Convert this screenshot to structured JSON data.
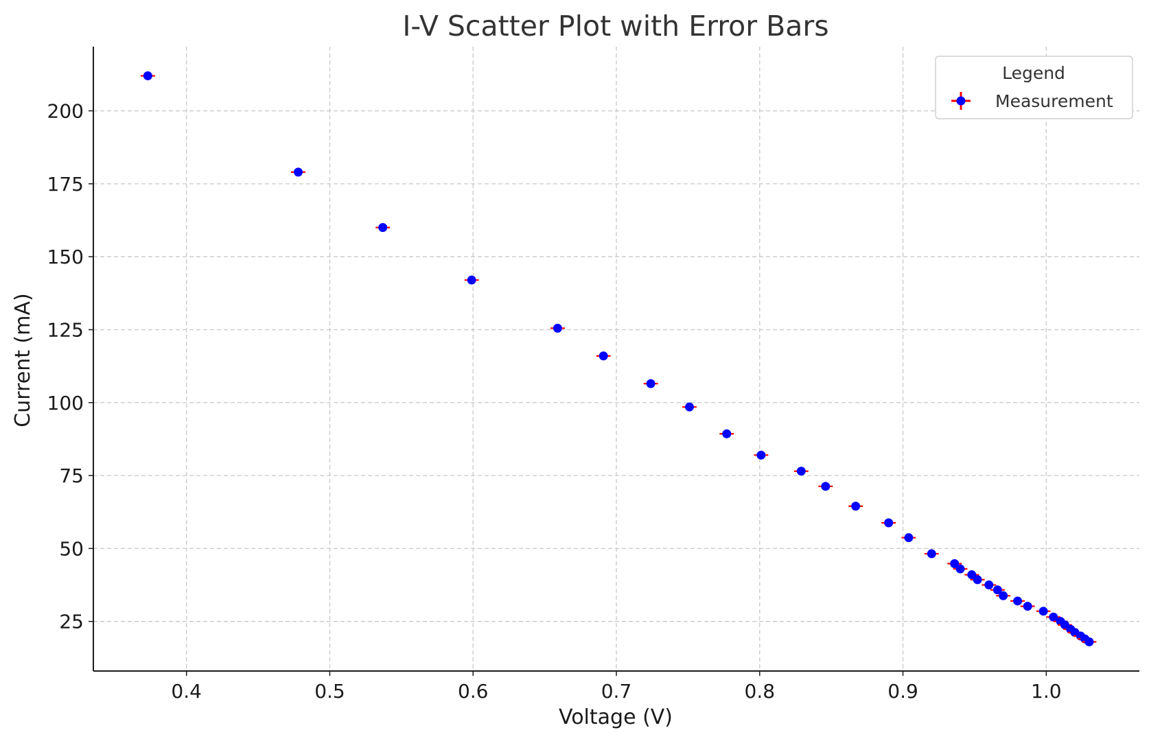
{
  "chart_data": {
    "type": "scatter",
    "title": "I-V Scatter Plot with Error Bars",
    "xlabel": "Voltage (V)",
    "ylabel": "Current (mA)",
    "xlim": [
      0.335,
      1.065
    ],
    "ylim": [
      8,
      222
    ],
    "xticks": [
      0.4,
      0.5,
      0.6,
      0.7,
      0.8,
      0.9,
      1.0
    ],
    "xtick_labels": [
      "0.4",
      "0.5",
      "0.6",
      "0.7",
      "0.8",
      "0.9",
      "1.0"
    ],
    "yticks": [
      25,
      50,
      75,
      100,
      125,
      150,
      175,
      200
    ],
    "ytick_labels": [
      "25",
      "50",
      "75",
      "100",
      "125",
      "150",
      "175",
      "200"
    ],
    "grid": true,
    "legend": {
      "title": "Legend",
      "placement": "top-right",
      "entries": [
        "Measurement"
      ]
    },
    "colors": {
      "marker": "#0000ff",
      "errorbar": "#ff0000"
    },
    "error": {
      "x": 0.005,
      "y": 0.9
    },
    "series": [
      {
        "name": "Measurement",
        "x": [
          0.373,
          0.478,
          0.537,
          0.599,
          0.659,
          0.691,
          0.724,
          0.751,
          0.777,
          0.801,
          0.829,
          0.846,
          0.867,
          0.89,
          0.904,
          0.92,
          0.936,
          0.94,
          0.948,
          0.952,
          0.96,
          0.966,
          0.97,
          0.98,
          0.987,
          0.998,
          1.005,
          1.01,
          1.013,
          1.017,
          1.02,
          1.024,
          1.027,
          1.03
        ],
        "y": [
          212,
          179,
          160,
          142,
          125.5,
          116,
          106.5,
          98.5,
          89.3,
          82,
          76.5,
          71.3,
          64.5,
          58.8,
          53.7,
          48.2,
          44.8,
          43,
          41,
          39.3,
          37.5,
          35.8,
          33.8,
          32,
          30.2,
          28.5,
          26.5,
          25,
          23.8,
          22.3,
          21.2,
          20,
          19,
          18
        ]
      }
    ]
  }
}
